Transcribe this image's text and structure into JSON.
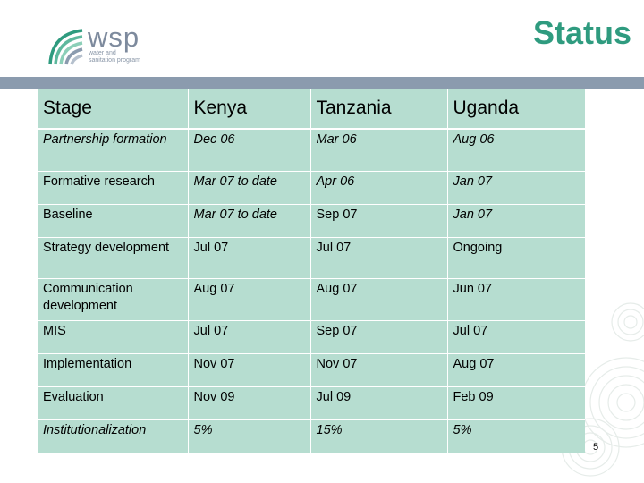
{
  "logo": {
    "wordmark": "wsp",
    "subtitle_lines": [
      "water and",
      "sanitation program"
    ]
  },
  "title": "Status",
  "table": {
    "headers": [
      "Stage",
      "Kenya",
      "Tanzania",
      "Uganda"
    ],
    "rows": [
      {
        "stage": "Partnership formation",
        "kenya": "Dec 06",
        "tanzania": "Mar 06",
        "uganda": "Aug 06",
        "italic": [
          true,
          true,
          true,
          true
        ]
      },
      {
        "stage": "Formative research",
        "kenya": "Mar 07 to date",
        "tanzania": "Apr 06",
        "uganda": "Jan 07",
        "italic": [
          false,
          true,
          true,
          true
        ]
      },
      {
        "stage": "Baseline",
        "kenya": "Mar 07 to date",
        "tanzania": "Sep 07",
        "uganda": "Jan 07",
        "italic": [
          false,
          true,
          false,
          true
        ]
      },
      {
        "stage": "Strategy development",
        "kenya": "Jul 07",
        "tanzania": "Jul 07",
        "uganda": "Ongoing",
        "italic": [
          false,
          false,
          false,
          false
        ]
      },
      {
        "stage": "Communication development",
        "kenya": "Aug 07",
        "tanzania": "Aug 07",
        "uganda": "Jun 07",
        "italic": [
          false,
          false,
          false,
          false
        ]
      },
      {
        "stage": "MIS",
        "kenya": "Jul 07",
        "tanzania": "Sep 07",
        "uganda": "Jul 07",
        "italic": [
          false,
          false,
          false,
          false
        ]
      },
      {
        "stage": "Implementation",
        "kenya": "Nov 07",
        "tanzania": "Nov 07",
        "uganda": "Aug 07",
        "italic": [
          false,
          false,
          false,
          false
        ]
      },
      {
        "stage": "Evaluation",
        "kenya": "Nov 09",
        "tanzania": "Jul 09",
        "uganda": "Feb 09",
        "italic": [
          false,
          false,
          false,
          false
        ]
      },
      {
        "stage": "Institutionalization",
        "kenya": "5%",
        "tanzania": "15%",
        "uganda": "5%",
        "italic": [
          true,
          true,
          true,
          true
        ]
      }
    ]
  },
  "page_number": "5",
  "colors": {
    "title": "#2f9b7f",
    "table_fill": "#b6ddd0",
    "top_bar": "#8b9bae",
    "logo_text": "#7d8a9d"
  }
}
